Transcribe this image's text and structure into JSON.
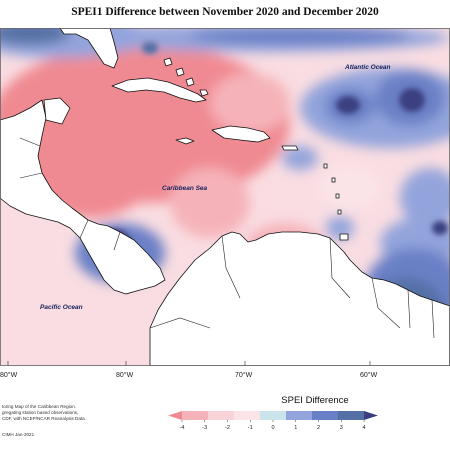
{
  "title": "SPEI1 Difference between November 2020 and December 2020",
  "labels": {
    "atlantic": "Atlantic Ocean",
    "caribbean": "Caribbean Sea",
    "pacific": "Pacific Ocean"
  },
  "longitude_ticks": [
    "80°W",
    "80°W",
    "70°W",
    "60°W"
  ],
  "legend": {
    "title": "SPEI Difference",
    "ticks": [
      "-4",
      "-3",
      "-2",
      "-1",
      "0",
      "1",
      "2",
      "3",
      "4"
    ],
    "colors": [
      "#f08a92",
      "#f5b3b9",
      "#f8d3d8",
      "#fbe4e8",
      "#cbe3ea",
      "#93a4dc",
      "#6a80c6",
      "#5570a4",
      "#3b3f80"
    ]
  },
  "notes": {
    "line1": "toring Map of the Caribbean Region.",
    "line2": "gregating station based observations,",
    "line3": "CDF, with NCEP/NCAR Reanalysis Data.",
    "credit": "CIMH Jan-2021"
  }
}
